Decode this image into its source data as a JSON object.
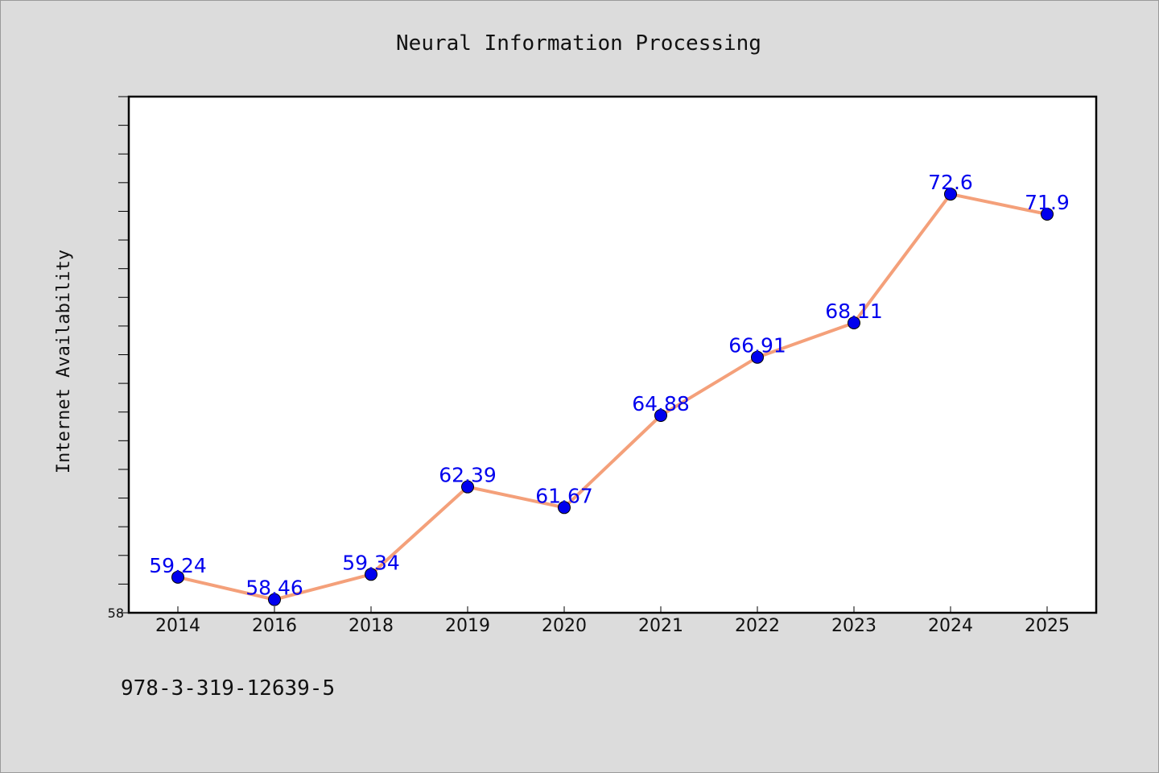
{
  "chart_data": {
    "type": "line",
    "title": "Neural Information Processing",
    "xlabel": "",
    "ylabel": "Internet Availability",
    "categories": [
      "2014",
      "2016",
      "2018",
      "2019",
      "2020",
      "2021",
      "2022",
      "2023",
      "2024",
      "2025"
    ],
    "series": [
      {
        "values": [
          59.24,
          58.46,
          59.34,
          62.39,
          61.67,
          64.88,
          66.91,
          68.11,
          72.6,
          71.9
        ]
      }
    ],
    "data_labels": [
      "59.24",
      "58.46",
      "59.34",
      "62.39",
      "61.67",
      "64.88",
      "66.91",
      "68.11",
      "72.6",
      "71.9"
    ],
    "ylim": [
      58,
      76
    ],
    "ytick_labels": [
      "58"
    ],
    "grid": false,
    "line_color": "#f4a07a",
    "marker_color": "#0000ee",
    "label_color": "#0000ee"
  },
  "footer": {
    "text": "978-3-319-12639-5"
  }
}
